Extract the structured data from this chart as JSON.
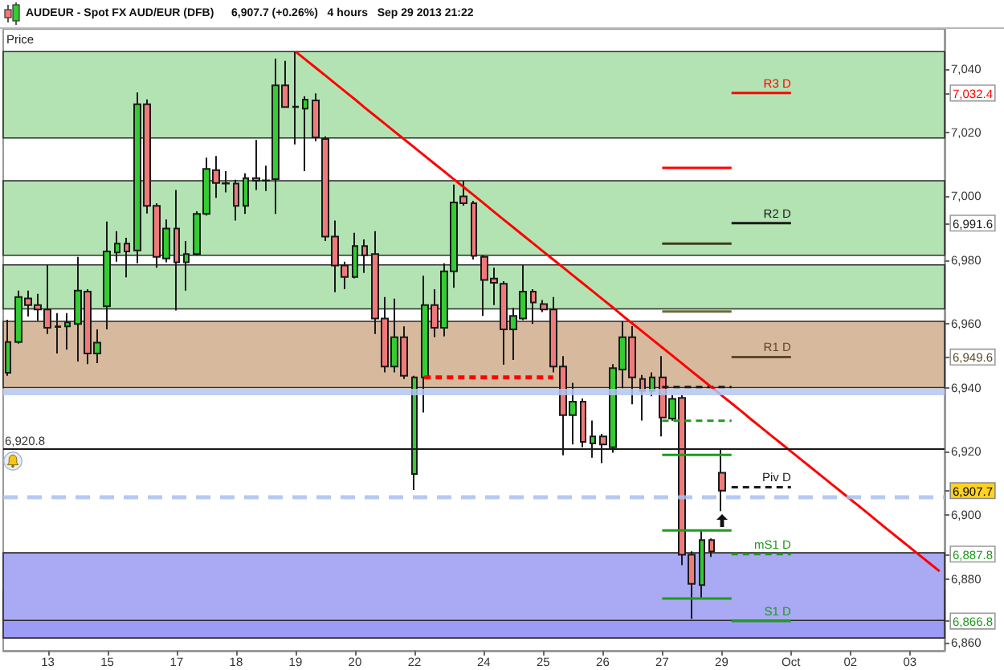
{
  "chart_data": {
    "type": "candlestick",
    "title": "AUDEUR - Spot FX AUD/EUR (DFB)",
    "subtitle": "6,907.7 (+0.26%)   4 hours   Sep 29 2013 21:22",
    "ylabel": "Price",
    "categories": [
      null,
      null,
      null,
      null,
      "13",
      null,
      null,
      null,
      null,
      null,
      "15",
      null,
      null,
      null,
      null,
      null,
      null,
      "17",
      null,
      null,
      null,
      null,
      null,
      "18",
      null,
      null,
      null,
      null,
      null,
      "19",
      null,
      null,
      null,
      null,
      null,
      "20",
      null,
      null,
      null,
      null,
      null,
      "22",
      null,
      null,
      null,
      null,
      null,
      null,
      "24",
      null,
      null,
      null,
      null,
      null,
      "25",
      null,
      null,
      null,
      null,
      null,
      "26",
      null,
      null,
      null,
      null,
      null,
      "27",
      null,
      null,
      null,
      null,
      null,
      "29",
      null,
      null,
      null,
      null,
      null,
      null,
      "Oct",
      null,
      null,
      null,
      null,
      null,
      "02",
      null,
      null,
      null,
      null,
      null,
      "03",
      null,
      null,
      null
    ],
    "ohlc": [
      [
        6944.7,
        6961.3,
        6943.7,
        6954.3
      ],
      [
        6954.3,
        6970.4,
        6953.8,
        6968.4
      ],
      [
        6968.0,
        6970.4,
        6962.3,
        6965.9
      ],
      [
        6965.9,
        6969.4,
        6961.0,
        6964.5
      ],
      [
        6964.5,
        6978.5,
        6956.8,
        6958.8
      ],
      [
        6959.0,
        6963.4,
        6950.7,
        6959.2
      ],
      [
        6959.2,
        6963.4,
        6951.9,
        6960.5
      ],
      [
        6960.0,
        6981.0,
        6948.2,
        6970.4
      ],
      [
        6970.1,
        6970.9,
        6947.4,
        6950.7
      ],
      [
        6950.7,
        6958.3,
        6947.7,
        6954.1
      ],
      [
        6965.5,
        6992.1,
        6958.3,
        6982.7
      ],
      [
        6982.4,
        6989.1,
        6979.5,
        6985.2
      ],
      [
        6985.2,
        6987.0,
        6974.6,
        6982.7
      ],
      [
        6983.0,
        7032.6,
        6979.0,
        7028.9
      ],
      [
        7028.9,
        7030.4,
        6994.6,
        6997.0
      ],
      [
        6997.0,
        6997.8,
        6977.6,
        6981.0
      ],
      [
        6980.5,
        6992.7,
        6979.3,
        6989.9
      ],
      [
        6989.9,
        7002.0,
        6964.2,
        6979.3
      ],
      [
        6979.3,
        6986.0,
        6970.4,
        6981.9
      ],
      [
        6981.9,
        6995.3,
        6981.4,
        6994.5
      ],
      [
        6994.5,
        7012.1,
        6994.0,
        7008.6
      ],
      [
        7008.2,
        7012.6,
        6999.5,
        7004.2
      ],
      [
        7004.0,
        7007.9,
        7001.2,
        7004.1
      ],
      [
        7004.0,
        7005.2,
        6992.4,
        6997.0
      ],
      [
        6997.0,
        7007.2,
        6994.5,
        7005.7
      ],
      [
        7005.7,
        7017.7,
        7002.0,
        7004.9
      ],
      [
        7004.9,
        7009.6,
        7001.7,
        7005.0
      ],
      [
        7005.4,
        7043.2,
        6994.5,
        7034.8
      ],
      [
        7034.8,
        7042.5,
        7027.9,
        7028.0
      ],
      [
        7028.0,
        7045.4,
        7016.3,
        7028.1
      ],
      [
        7027.5,
        7031.4,
        7007.9,
        7030.3
      ],
      [
        7030.1,
        7032.3,
        7017.3,
        7018.5
      ],
      [
        7018.0,
        7018.8,
        6986.0,
        6987.4
      ],
      [
        6987.4,
        6992.4,
        6969.9,
        6978.3
      ],
      [
        6978.3,
        6979.5,
        6970.9,
        6974.7
      ],
      [
        6974.7,
        6988.6,
        6974.3,
        6984.4
      ],
      [
        6984.4,
        6986.5,
        6976.0,
        6981.5
      ],
      [
        6981.9,
        6989.1,
        6956.8,
        6961.7
      ],
      [
        6961.7,
        6968.4,
        6944.8,
        6946.6
      ],
      [
        6946.6,
        6967.9,
        6944.8,
        6955.8
      ],
      [
        6955.8,
        6959.2,
        6942.7,
        6943.7
      ],
      [
        6912.9,
        6943.7,
        6907.9,
        6943.2
      ],
      [
        6943.2,
        6975.1,
        6932.2,
        6965.9
      ],
      [
        6965.9,
        6970.9,
        6955.8,
        6958.8
      ],
      [
        6958.8,
        6979.0,
        6956.1,
        6976.5
      ],
      [
        6976.5,
        7003.7,
        6971.3,
        6998.1
      ],
      [
        7000.0,
        7004.9,
        6997.1,
        6997.8
      ],
      [
        6997.8,
        6998.6,
        6980.2,
        6981.3
      ],
      [
        6981.0,
        6981.5,
        6962.5,
        6973.8
      ],
      [
        6974.2,
        6977.6,
        6965.9,
        6972.9
      ],
      [
        6972.6,
        6973.4,
        6947.2,
        6958.3
      ],
      [
        6958.3,
        6965.0,
        6948.7,
        6962.5
      ],
      [
        6961.7,
        6978.5,
        6961.2,
        6970.1
      ],
      [
        6970.1,
        6970.9,
        6960.0,
        6966.7
      ],
      [
        6966.2,
        6967.5,
        6963.7,
        6964.5
      ],
      [
        6964.5,
        6968.4,
        6944.8,
        6946.6
      ],
      [
        6946.6,
        6949.9,
        6918.8,
        6931.4
      ],
      [
        6931.4,
        6941.5,
        6922.2,
        6935.6
      ],
      [
        6935.6,
        6936.6,
        6921.3,
        6923.0
      ],
      [
        6922.5,
        6929.7,
        6918.0,
        6924.7
      ],
      [
        6924.7,
        6925.5,
        6916.3,
        6922.2
      ],
      [
        6921.3,
        6947.4,
        6919.6,
        6946.1
      ],
      [
        6945.7,
        6960.8,
        6939.8,
        6955.8
      ],
      [
        6955.8,
        6959.3,
        6934.8,
        6943.2
      ],
      [
        6942.7,
        6944.0,
        6929.7,
        6939.0
      ],
      [
        6939.0,
        6944.8,
        6937.3,
        6943.2
      ],
      [
        6943.2,
        6949.9,
        6924.7,
        6930.6
      ],
      [
        6930.3,
        6937.6,
        6929.6,
        6936.5
      ],
      [
        6936.8,
        6937.6,
        6884.3,
        6887.6
      ],
      [
        6887.6,
        6888.7,
        6867.5,
        6878.5
      ],
      [
        6878.1,
        6895.3,
        6874.2,
        6892.2
      ],
      [
        6892.2,
        6892.7,
        6886.9,
        6888.6
      ],
      [
        6913.3,
        6920.5,
        6901.3,
        6907.7
      ],
      null,
      null,
      null,
      null,
      null,
      null,
      null,
      null,
      null,
      null,
      null,
      null,
      null,
      null,
      null,
      null,
      null,
      null,
      null,
      null,
      null,
      null
    ],
    "colors": [
      "#33cc33",
      "#33cc33",
      "#f07a7a",
      "#f07a7a",
      "#f07a7a",
      "#33cc33",
      "#33cc33",
      "#33cc33",
      "#f07a7a",
      "#33cc33",
      "#33cc33",
      "#33cc33",
      "#f07a7a",
      "#33cc33",
      "#f07a7a",
      "#f07a7a",
      "#33cc33",
      "#f07a7a",
      "#33cc33",
      "#33cc33",
      "#33cc33",
      "#f07a7a",
      "#33cc33",
      "#f07a7a",
      "#33cc33",
      "#f07a7a",
      "#33cc33",
      "#33cc33",
      "#f07a7a",
      "#33cc33",
      "#33cc33",
      "#f07a7a",
      "#f07a7a",
      "#f07a7a",
      "#f07a7a",
      "#33cc33",
      "#f07a7a",
      "#f07a7a",
      "#f07a7a",
      "#33cc33",
      "#f07a7a",
      "#33cc33",
      "#33cc33",
      "#f07a7a",
      "#33cc33",
      "#33cc33",
      "#f07a7a",
      "#f07a7a",
      "#f07a7a",
      "#f07a7a",
      "#f07a7a",
      "#33cc33",
      "#33cc33",
      "#f07a7a",
      "#f07a7a",
      "#f07a7a",
      "#f07a7a",
      "#33cc33",
      "#f07a7a",
      "#33cc33",
      "#f07a7a",
      "#33cc33",
      "#33cc33",
      "#f07a7a",
      "#f07a7a",
      "#33cc33",
      "#f07a7a",
      "#33cc33",
      "#f07a7a",
      "#f07a7a",
      "#33cc33",
      "#f07a7a",
      "#f07a7a",
      null,
      null,
      null,
      null,
      null,
      null,
      null,
      null,
      null,
      null,
      null,
      null,
      null,
      null,
      null,
      null,
      null,
      null,
      null,
      null,
      null,
      null
    ],
    "series": [
      {
        "type": "line",
        "name": "R3 D",
        "color": "#ff0000",
        "values": [
          null,
          null,
          null,
          null,
          null,
          null,
          null,
          null,
          null,
          null,
          null,
          null,
          null,
          null,
          null,
          null,
          null,
          null,
          null,
          null,
          null,
          null,
          null,
          null,
          null,
          null,
          null,
          null,
          null,
          null,
          null,
          null,
          null,
          null,
          null,
          null,
          null,
          null,
          null,
          null,
          null,
          null,
          null,
          null,
          null,
          null,
          null,
          null,
          null,
          null,
          null,
          null,
          null,
          null,
          null,
          null,
          null,
          null,
          null,
          null,
          null,
          null,
          null,
          null,
          null,
          null,
          null,
          null,
          null,
          null,
          null,
          null,
          null,
          7032.4,
          7032.4,
          7032.4,
          7032.4,
          7032.4,
          7032.4,
          7032.4,
          null,
          null,
          null,
          null,
          null,
          null,
          null,
          null,
          null,
          null,
          null,
          null,
          null,
          null,
          null
        ]
      },
      {
        "type": "line",
        "name": "R2 D",
        "color": "#1a1a1a",
        "values": [
          null,
          null,
          null,
          null,
          null,
          null,
          null,
          null,
          null,
          null,
          null,
          null,
          null,
          null,
          null,
          null,
          null,
          null,
          null,
          null,
          null,
          null,
          null,
          null,
          null,
          null,
          null,
          null,
          null,
          null,
          null,
          null,
          null,
          null,
          null,
          null,
          null,
          null,
          null,
          null,
          null,
          null,
          null,
          null,
          null,
          null,
          null,
          null,
          null,
          null,
          null,
          null,
          null,
          null,
          null,
          null,
          null,
          null,
          null,
          null,
          null,
          null,
          null,
          null,
          null,
          null,
          null,
          null,
          null,
          null,
          null,
          null,
          null,
          6991.6,
          6991.6,
          6991.6,
          6991.6,
          6991.6,
          6991.6,
          6991.6,
          null,
          null,
          null,
          null,
          null,
          null,
          null,
          null,
          null,
          null,
          null,
          null,
          null,
          null,
          null
        ]
      },
      {
        "type": "line",
        "name": "R1 D",
        "color": "#5c4a24",
        "values": [
          null,
          null,
          null,
          null,
          null,
          null,
          null,
          null,
          null,
          null,
          null,
          null,
          null,
          null,
          null,
          null,
          null,
          null,
          null,
          null,
          null,
          null,
          null,
          null,
          null,
          null,
          null,
          null,
          null,
          null,
          null,
          null,
          null,
          null,
          null,
          null,
          null,
          null,
          null,
          null,
          null,
          null,
          null,
          null,
          null,
          null,
          null,
          null,
          null,
          null,
          null,
          null,
          null,
          null,
          null,
          null,
          null,
          null,
          null,
          null,
          null,
          null,
          null,
          null,
          null,
          null,
          null,
          null,
          null,
          null,
          null,
          null,
          null,
          6949.6,
          6949.6,
          6949.6,
          6949.6,
          6949.6,
          6949.6,
          6949.6,
          null,
          null,
          null,
          null,
          null,
          null,
          null,
          null,
          null,
          null,
          null,
          null,
          null,
          null,
          null
        ]
      },
      {
        "type": "line",
        "name": "Piv D",
        "color": "#1a1a1a",
        "line_style": "dashed",
        "values": [
          null,
          null,
          null,
          null,
          null,
          null,
          null,
          null,
          null,
          null,
          null,
          null,
          null,
          null,
          null,
          null,
          null,
          null,
          null,
          null,
          null,
          null,
          null,
          null,
          null,
          null,
          null,
          null,
          null,
          null,
          null,
          null,
          null,
          null,
          null,
          null,
          null,
          null,
          null,
          null,
          null,
          null,
          null,
          null,
          null,
          null,
          null,
          null,
          null,
          null,
          null,
          null,
          null,
          null,
          null,
          null,
          null,
          null,
          null,
          null,
          null,
          null,
          null,
          null,
          null,
          null,
          null,
          null,
          null,
          null,
          null,
          null,
          null,
          6908.8,
          6908.8,
          6908.8,
          6908.8,
          6908.8,
          6908.8,
          6908.8,
          null,
          null,
          null,
          null,
          null,
          null,
          null,
          null,
          null,
          null,
          null,
          null,
          null,
          null,
          null
        ]
      },
      {
        "type": "line",
        "name": "mS1 D",
        "color": "#1f9a1f",
        "line_style": "dashed",
        "values": [
          null,
          null,
          null,
          null,
          null,
          null,
          null,
          null,
          null,
          null,
          null,
          null,
          null,
          null,
          null,
          null,
          null,
          null,
          null,
          null,
          null,
          null,
          null,
          null,
          null,
          null,
          null,
          null,
          null,
          null,
          null,
          null,
          null,
          null,
          null,
          null,
          null,
          null,
          null,
          null,
          null,
          null,
          null,
          null,
          null,
          null,
          null,
          null,
          null,
          null,
          null,
          null,
          null,
          null,
          null,
          null,
          null,
          null,
          null,
          null,
          null,
          null,
          null,
          null,
          null,
          null,
          null,
          null,
          null,
          null,
          null,
          null,
          null,
          6887.8,
          6887.8,
          6887.8,
          6887.8,
          6887.8,
          6887.8,
          6887.8,
          null,
          null,
          null,
          null,
          null,
          null,
          null,
          null,
          null,
          null,
          null,
          null,
          null,
          null,
          null
        ]
      },
      {
        "type": "line",
        "name": "S1 D",
        "color": "#1f9a1f",
        "values": [
          null,
          null,
          null,
          null,
          null,
          null,
          null,
          null,
          null,
          null,
          null,
          null,
          null,
          null,
          null,
          null,
          null,
          null,
          null,
          null,
          null,
          null,
          null,
          null,
          null,
          null,
          null,
          null,
          null,
          null,
          null,
          null,
          null,
          null,
          null,
          null,
          null,
          null,
          null,
          null,
          null,
          null,
          null,
          null,
          null,
          null,
          null,
          null,
          null,
          null,
          null,
          null,
          null,
          null,
          null,
          null,
          null,
          null,
          null,
          null,
          null,
          null,
          null,
          null,
          null,
          null,
          null,
          null,
          null,
          null,
          null,
          null,
          null,
          6866.8,
          6866.8,
          6866.8,
          6866.8,
          6866.8,
          6866.8,
          6866.8,
          null,
          null,
          null,
          null,
          null,
          null,
          null,
          null,
          null,
          null,
          null,
          null,
          null,
          null,
          null
        ]
      },
      {
        "type": "line",
        "color": "#ff0000",
        "values": [
          null,
          null,
          null,
          null,
          null,
          null,
          null,
          null,
          null,
          null,
          null,
          null,
          null,
          null,
          null,
          null,
          null,
          null,
          null,
          null,
          null,
          null,
          null,
          null,
          null,
          null,
          null,
          null,
          null,
          null,
          null,
          null,
          null,
          null,
          null,
          null,
          null,
          null,
          null,
          null,
          null,
          null,
          null,
          null,
          null,
          null,
          null,
          null,
          null,
          null,
          null,
          null,
          null,
          null,
          null,
          null,
          null,
          null,
          null,
          null,
          null,
          null,
          null,
          null,
          null,
          null,
          7008.9,
          7008.9,
          7008.9,
          7008.9,
          7008.9,
          7008.9,
          7008.9,
          7008.9,
          null,
          null,
          null,
          null,
          null,
          null,
          null,
          null,
          null,
          null,
          null,
          null,
          null,
          null,
          null,
          null,
          null,
          null,
          null,
          null,
          null
        ]
      },
      {
        "type": "line",
        "color": "#3d3d1f",
        "values": [
          null,
          null,
          null,
          null,
          null,
          null,
          null,
          null,
          null,
          null,
          null,
          null,
          null,
          null,
          null,
          null,
          null,
          null,
          null,
          null,
          null,
          null,
          null,
          null,
          null,
          null,
          null,
          null,
          null,
          null,
          null,
          null,
          null,
          null,
          null,
          null,
          null,
          null,
          null,
          null,
          null,
          null,
          null,
          null,
          null,
          null,
          null,
          null,
          null,
          null,
          null,
          null,
          null,
          null,
          null,
          null,
          null,
          null,
          null,
          null,
          null,
          null,
          null,
          null,
          null,
          null,
          6985.2,
          6985.2,
          6985.2,
          6985.2,
          6985.2,
          6985.2,
          6985.2,
          6985.2,
          null,
          null,
          null,
          null,
          null,
          null,
          null,
          null,
          null,
          null,
          null,
          null,
          null,
          null,
          null,
          null,
          null,
          null,
          null,
          null,
          null
        ]
      },
      {
        "type": "line",
        "color": "#6b6b3c",
        "values": [
          null,
          null,
          null,
          null,
          null,
          null,
          null,
          null,
          null,
          null,
          null,
          null,
          null,
          null,
          null,
          null,
          null,
          null,
          null,
          null,
          null,
          null,
          null,
          null,
          null,
          null,
          null,
          null,
          null,
          null,
          null,
          null,
          null,
          null,
          null,
          null,
          null,
          null,
          null,
          null,
          null,
          null,
          null,
          null,
          null,
          null,
          null,
          null,
          null,
          null,
          null,
          null,
          null,
          null,
          null,
          null,
          null,
          null,
          null,
          null,
          null,
          null,
          null,
          null,
          null,
          null,
          6963.9,
          6963.9,
          6963.9,
          6963.9,
          6963.9,
          6963.9,
          6963.9,
          6963.9,
          null,
          null,
          null,
          null,
          null,
          null,
          null,
          null,
          null,
          null,
          null,
          null,
          null,
          null,
          null,
          null,
          null,
          null,
          null,
          null,
          null
        ]
      },
      {
        "type": "line",
        "color": "#1a1a1a",
        "line_style": "dashed",
        "values": [
          null,
          null,
          null,
          null,
          null,
          null,
          null,
          null,
          null,
          null,
          null,
          null,
          null,
          null,
          null,
          null,
          null,
          null,
          null,
          null,
          null,
          null,
          null,
          null,
          null,
          null,
          null,
          null,
          null,
          null,
          null,
          null,
          null,
          null,
          null,
          null,
          null,
          null,
          null,
          null,
          null,
          null,
          null,
          null,
          null,
          null,
          null,
          null,
          null,
          null,
          null,
          null,
          null,
          null,
          null,
          null,
          null,
          null,
          null,
          null,
          null,
          null,
          null,
          null,
          null,
          null,
          6940.2,
          6940.2,
          6940.2,
          6940.2,
          6940.2,
          6940.2,
          6940.2,
          6940.2,
          null,
          null,
          null,
          null,
          null,
          null,
          null,
          null,
          null,
          null,
          null,
          null,
          null,
          null,
          null,
          null,
          null,
          null,
          null,
          null,
          null
        ]
      },
      {
        "type": "line",
        "color": "#1f9a1f",
        "line_style": "dashed",
        "values": [
          null,
          null,
          null,
          null,
          null,
          null,
          null,
          null,
          null,
          null,
          null,
          null,
          null,
          null,
          null,
          null,
          null,
          null,
          null,
          null,
          null,
          null,
          null,
          null,
          null,
          null,
          null,
          null,
          null,
          null,
          null,
          null,
          null,
          null,
          null,
          null,
          null,
          null,
          null,
          null,
          null,
          null,
          null,
          null,
          null,
          null,
          null,
          null,
          null,
          null,
          null,
          null,
          null,
          null,
          null,
          null,
          null,
          null,
          null,
          null,
          null,
          null,
          null,
          null,
          null,
          null,
          6929.6,
          6929.6,
          6929.6,
          6929.6,
          6929.6,
          6929.6,
          6929.6,
          6929.6,
          null,
          null,
          null,
          null,
          null,
          null,
          null,
          null,
          null,
          null,
          null,
          null,
          null,
          null,
          null,
          null,
          null,
          null,
          null,
          null,
          null
        ]
      },
      {
        "type": "line",
        "color": "#1f9a1f",
        "values": [
          null,
          null,
          null,
          null,
          null,
          null,
          null,
          null,
          null,
          null,
          null,
          null,
          null,
          null,
          null,
          null,
          null,
          null,
          null,
          null,
          null,
          null,
          null,
          null,
          null,
          null,
          null,
          null,
          null,
          null,
          null,
          null,
          null,
          null,
          null,
          null,
          null,
          null,
          null,
          null,
          null,
          null,
          null,
          null,
          null,
          null,
          null,
          null,
          null,
          null,
          null,
          null,
          null,
          null,
          null,
          null,
          null,
          null,
          null,
          null,
          null,
          null,
          null,
          null,
          null,
          null,
          6918.9,
          6918.9,
          6918.9,
          6918.9,
          6918.9,
          6918.9,
          6918.9,
          6918.9,
          null,
          null,
          null,
          null,
          null,
          null,
          null,
          null,
          null,
          null,
          null,
          null,
          null,
          null,
          null,
          null,
          null,
          null,
          null,
          null,
          null
        ]
      },
      {
        "type": "line",
        "color": "#1f9a1f",
        "values": [
          null,
          null,
          null,
          null,
          null,
          null,
          null,
          null,
          null,
          null,
          null,
          null,
          null,
          null,
          null,
          null,
          null,
          null,
          null,
          null,
          null,
          null,
          null,
          null,
          null,
          null,
          null,
          null,
          null,
          null,
          null,
          null,
          null,
          null,
          null,
          null,
          null,
          null,
          null,
          null,
          null,
          null,
          null,
          null,
          null,
          null,
          null,
          null,
          null,
          null,
          null,
          null,
          null,
          null,
          null,
          null,
          null,
          null,
          null,
          null,
          null,
          null,
          null,
          null,
          null,
          null,
          6895.2,
          6895.2,
          6895.2,
          6895.2,
          6895.2,
          6895.2,
          6895.2,
          6895.2,
          null,
          null,
          null,
          null,
          null,
          null,
          null,
          null,
          null,
          null,
          null,
          null,
          null,
          null,
          null,
          null,
          null,
          null,
          null,
          null,
          null
        ]
      },
      {
        "type": "line",
        "color": "#1f9a1f",
        "values": [
          null,
          null,
          null,
          null,
          null,
          null,
          null,
          null,
          null,
          null,
          null,
          null,
          null,
          null,
          null,
          null,
          null,
          null,
          null,
          null,
          null,
          null,
          null,
          null,
          null,
          null,
          null,
          null,
          null,
          null,
          null,
          null,
          null,
          null,
          null,
          null,
          null,
          null,
          null,
          null,
          null,
          null,
          null,
          null,
          null,
          null,
          null,
          null,
          null,
          null,
          null,
          null,
          null,
          null,
          null,
          null,
          null,
          null,
          null,
          null,
          null,
          null,
          null,
          null,
          null,
          null,
          6873.9,
          6873.9,
          6873.9,
          6873.9,
          6873.9,
          6873.9,
          6873.9,
          6873.9,
          null,
          null,
          null,
          null,
          null,
          null,
          null,
          null,
          null,
          null,
          null,
          null,
          null,
          null,
          null,
          null,
          null,
          null,
          null,
          null,
          null
        ]
      },
      {
        "type": "line",
        "color": "#ff0000",
        "line_style": "dashed",
        "values": [
          null,
          null,
          null,
          null,
          null,
          null,
          null,
          null,
          null,
          null,
          null,
          null,
          null,
          null,
          null,
          null,
          null,
          null,
          null,
          null,
          null,
          null,
          null,
          null,
          null,
          null,
          null,
          null,
          null,
          null,
          null,
          null,
          null,
          null,
          null,
          null,
          null,
          null,
          null,
          null,
          null,
          null,
          6943.2,
          6943.2,
          6943.2,
          6943.2,
          6943.2,
          6943.2,
          6943.2,
          6943.2,
          6943.2,
          6943.2,
          6943.2,
          6943.2,
          6943.2,
          6943.2,
          null,
          null,
          null,
          null,
          null,
          null,
          null,
          null,
          null,
          null,
          null,
          null,
          null,
          null,
          null,
          null,
          null,
          null,
          null,
          null,
          null,
          null,
          null,
          null,
          null,
          null,
          null,
          null,
          null,
          null,
          null,
          null,
          null,
          null,
          null,
          null,
          null,
          null,
          null
        ]
      },
      {
        "type": "line",
        "color": "#ff0000",
        "values": [
          null,
          null,
          null,
          null,
          null,
          null,
          null,
          null,
          null,
          null,
          null,
          null,
          null,
          null,
          null,
          null,
          null,
          null,
          null,
          null,
          null,
          null,
          null,
          null,
          null,
          null,
          null,
          null,
          null,
          7045.4,
          7042.9,
          7040.4,
          7037.9,
          7035.4,
          7032.9,
          7030.4,
          7027.8,
          7025.3,
          7022.8,
          7020.3,
          7017.8,
          7015.3,
          7012.8,
          7010.3,
          7007.8,
          7005.3,
          7002.8,
          7000.3,
          6997.8,
          6995.2,
          6992.7,
          6990.2,
          6987.7,
          6985.2,
          6982.7,
          6980.2,
          6977.7,
          6975.2,
          6972.7,
          6970.2,
          6967.7,
          6965.2,
          6962.6,
          6960.1,
          6957.6,
          6955.1,
          6952.6,
          6950.1,
          6947.6,
          6945.1,
          6942.6,
          6940.1,
          6937.6,
          6935.1,
          6932.6,
          6930.0,
          6927.5,
          6925.0,
          6922.5,
          6920.0,
          6917.5,
          6915.0,
          6912.5,
          6910.0,
          6907.5,
          6905.0,
          6902.5,
          6900.0,
          6897.4,
          6894.9,
          6892.4,
          6889.9,
          6887.4,
          6884.9,
          6882.4
        ]
      }
    ],
    "ylim": [
      6857.5,
      7052.5
    ],
    "yticks": [
      {
        "value": 6860,
        "label": "6,860"
      },
      {
        "value": 6866.8,
        "label": "6,866.8"
      },
      {
        "value": 6880,
        "label": "6,880"
      },
      {
        "value": 6887.8,
        "label": "6,887.8"
      },
      {
        "value": 6900,
        "label": "6,900"
      },
      {
        "value": 6907.7,
        "label": "6,907.7"
      },
      {
        "value": 6920,
        "label": "6,920"
      },
      {
        "value": 6940,
        "label": "6,940"
      },
      {
        "value": 6949.6,
        "label": "6,949.6"
      },
      {
        "value": 6960,
        "label": "6,960"
      },
      {
        "value": 6980,
        "label": "6,980"
      },
      {
        "value": 6991.6,
        "label": "6,991.6"
      },
      {
        "value": 7000,
        "label": "7,000"
      },
      {
        "value": 7020,
        "label": "7,020"
      },
      {
        "value": 7032.4,
        "label": "7,032.4"
      },
      {
        "value": 7040,
        "label": "7,040"
      }
    ],
    "ref_lines": [
      {
        "axis": "y",
        "value": 6920.8,
        "label": "6,920.8",
        "color": "#1a1a1a"
      },
      {
        "axis": "y",
        "value": 6938.5,
        "color": "#b4c6f2"
      },
      {
        "axis": "y",
        "value": 6905.8,
        "color": "#a9bff0",
        "line_style": "dashed"
      }
    ],
    "bands": [
      {
        "axis": "y",
        "from": 7018.3,
        "to": 7045.4,
        "color": "#b3e3b3"
      },
      {
        "axis": "y",
        "from": 6981.5,
        "to": 7004.9,
        "color": "#b3e3b3"
      },
      {
        "axis": "y",
        "from": 6964.7,
        "to": 6978.5,
        "color": "#b3e3b3"
      },
      {
        "axis": "y",
        "from": 6940,
        "to": 6960.8,
        "color": "#d7b99d"
      },
      {
        "axis": "y",
        "from": 6861.5,
        "to": 6876.3,
        "color": "#9c9cf6"
      },
      {
        "axis": "y",
        "from": 6867,
        "to": 6888.2,
        "color": "#a9a9f4"
      }
    ]
  }
}
